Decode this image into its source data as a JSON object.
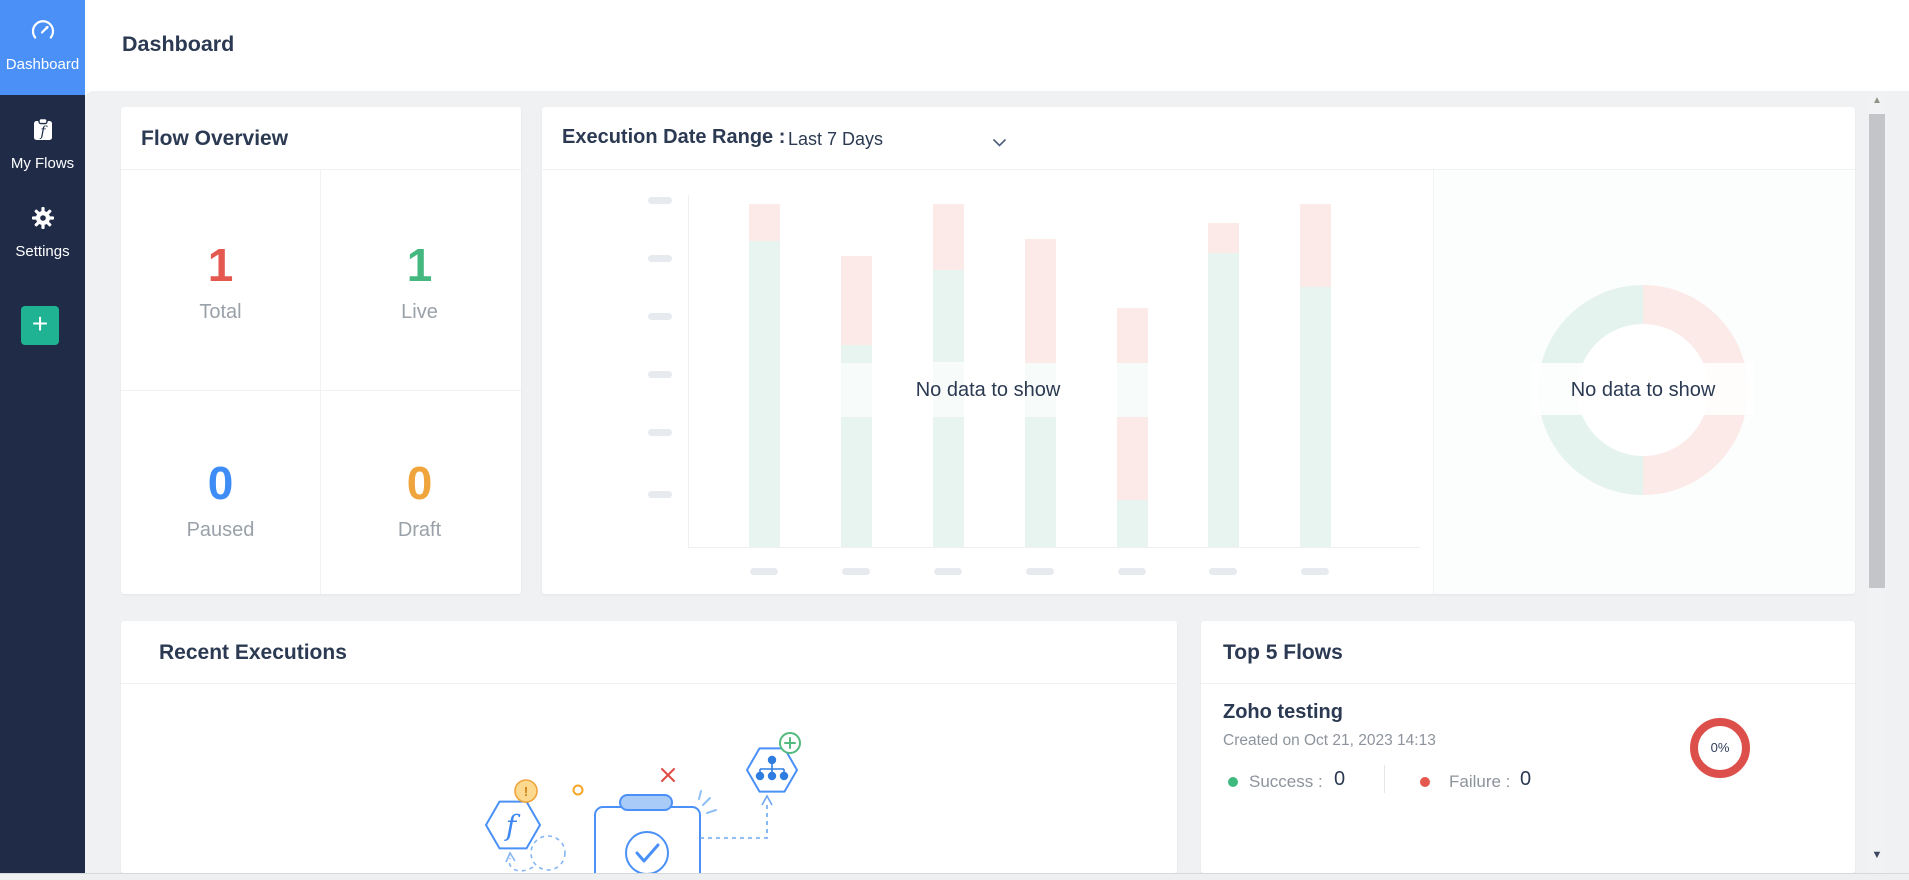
{
  "page": {
    "title": "Dashboard"
  },
  "sidebar": {
    "items": [
      {
        "label": "Dashboard",
        "icon": "gauge-icon",
        "active": true
      },
      {
        "label": "My Flows",
        "icon": "clipboard-flow-icon",
        "active": false
      },
      {
        "label": "Settings",
        "icon": "gear-icon",
        "active": false
      }
    ],
    "create_label": "+",
    "colors": {
      "background": "#1f2b47",
      "active": "#4a90f7",
      "create_button": "#1fb394"
    }
  },
  "flow_overview": {
    "title": "Flow Overview",
    "stats": [
      {
        "label": "Total",
        "value": "1",
        "color": "#e4584f"
      },
      {
        "label": "Live",
        "value": "1",
        "color": "#45b87f"
      },
      {
        "label": "Paused",
        "value": "0",
        "color": "#3e8cf5"
      },
      {
        "label": "Draft",
        "value": "0",
        "color": "#f0a43c"
      }
    ]
  },
  "executions_panel": {
    "title": "Execution Date Range :",
    "range_value": "Last 7 Days",
    "bar_message": "No data to show",
    "donut_message": "No data to show"
  },
  "recent_executions": {
    "title": "Recent Executions"
  },
  "top_flows": {
    "title": "Top 5 Flows",
    "flows": [
      {
        "name": "Zoho testing",
        "created": "Created on Oct 21, 2023 14:13",
        "success_label": "Success :",
        "success_value": "0",
        "failure_label": "Failure :",
        "failure_value": "0",
        "percent": "0%",
        "ring_color": "#dd4f4b",
        "success_dot_color": "#3fba7f",
        "failure_dot_color": "#e4584f"
      }
    ]
  },
  "chart_data": [
    {
      "type": "bar",
      "title": "Execution Date Range : Last 7 Days",
      "message": "No data to show",
      "series": [],
      "note": "empty-state skeleton bars, no axis values rendered",
      "colors": {
        "pink": "#fbeae8",
        "teal": "#e7f4f0",
        "pale": "#f7fbfa"
      },
      "skeleton_bars": [
        {
          "x": 222,
          "segments": [
            [
              "pink",
              97,
              134
            ],
            [
              "teal",
              134,
              440
            ]
          ]
        },
        {
          "x": 314,
          "segments": [
            [
              "pink",
              149,
              238
            ],
            [
              "teal",
              238,
              256
            ],
            [
              "pale",
              256,
              310
            ],
            [
              "teal",
              310,
              440
            ]
          ]
        },
        {
          "x": 406,
          "segments": [
            [
              "pink",
              97,
              163
            ],
            [
              "teal",
              163,
              255
            ],
            [
              "pale",
              255,
              310
            ],
            [
              "teal",
              310,
              440
            ]
          ]
        },
        {
          "x": 498,
          "segments": [
            [
              "pink",
              132,
              256
            ],
            [
              "pale",
              256,
              310
            ],
            [
              "teal",
              310,
              440
            ]
          ]
        },
        {
          "x": 590,
          "segments": [
            [
              "pink",
              201,
              256
            ],
            [
              "pale",
              256,
              310
            ],
            [
              "pink",
              310,
              393
            ],
            [
              "teal",
              393,
              440
            ]
          ]
        },
        {
          "x": 681,
          "segments": [
            [
              "pink",
              116,
              146
            ],
            [
              "teal",
              146,
              440
            ]
          ]
        },
        {
          "x": 773,
          "segments": [
            [
              "pink",
              97,
              180
            ],
            [
              "teal",
              180,
              440
            ]
          ]
        }
      ],
      "y_dash_centers": [
        93,
        151,
        209,
        267,
        325,
        387
      ],
      "x_dash_centers": [
        222,
        314,
        406,
        498,
        590,
        681,
        773
      ]
    },
    {
      "type": "pie",
      "message": "No data to show",
      "note": "empty-state donut placeholder",
      "slices": [
        {
          "name": "left-half-placeholder",
          "color": "#e5f3ee",
          "fraction": 0.5
        },
        {
          "name": "right-half-placeholder",
          "color": "#fbeae8",
          "fraction": 0.5
        }
      ]
    }
  ]
}
